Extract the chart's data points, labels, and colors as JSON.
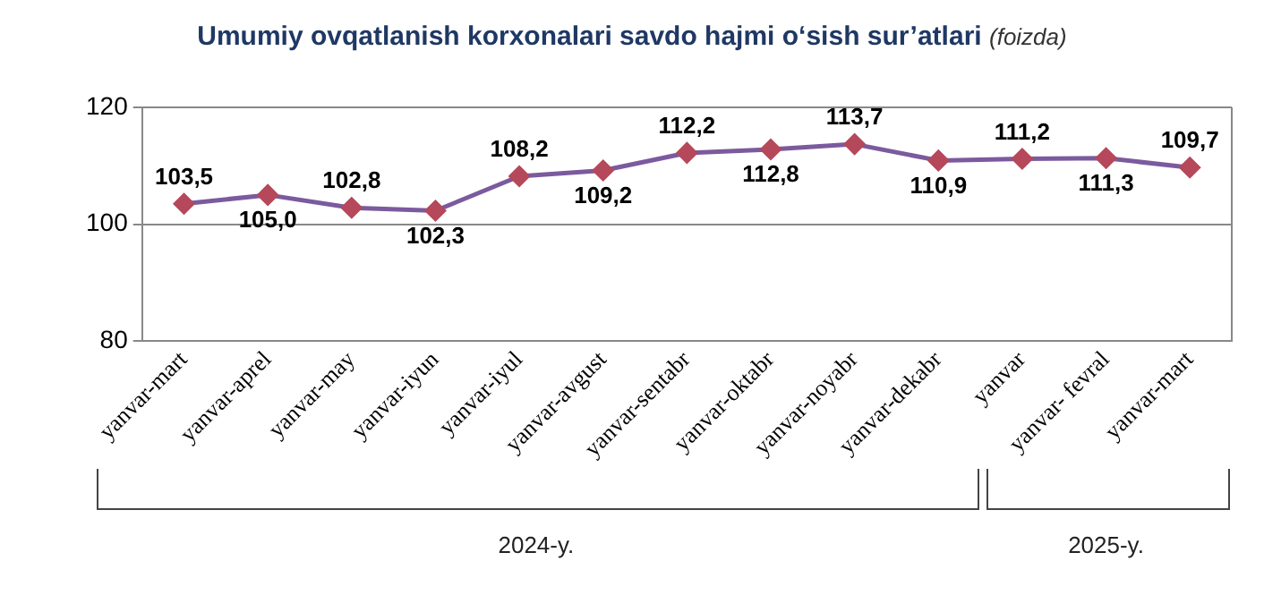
{
  "chart_data": {
    "type": "line",
    "title": "Umumiy ovqatlanish korxonalari savdo hajmi o‘sish sur’atlari",
    "subtitle": "(foizda)",
    "categories": [
      "yanvar-mart",
      "yanvar-aprel",
      "yanvar-may",
      "yanvar-iyun",
      "yanvar-iyul",
      "yanvar-avgust",
      "yanvar-sentabr",
      "yanvar-oktabr",
      "yanvar-noyabr",
      "yanvar-dekabr",
      "yanvar",
      "yanvar- fevral",
      "yanvar-mart"
    ],
    "series": [
      {
        "color": "#7b5a9e",
        "colors": [
          "#b5485a",
          "#b5485a",
          "#b5485a",
          "#b5485a",
          "#b5485a",
          "#b5485a",
          "#b5485a",
          "#b5485a",
          "#b5485a",
          "#b5485a",
          "#b5485a",
          "#b5485a",
          "#b5485a"
        ],
        "values": [
          103.5,
          105.0,
          102.8,
          102.3,
          108.2,
          109.2,
          112.2,
          112.8,
          113.7,
          110.9,
          111.2,
          111.3,
          109.7
        ],
        "value_labels": [
          "103,5",
          "105,0",
          "102,8",
          "102,3",
          "108,2",
          "109,2",
          "112,2",
          "112,8",
          "113,7",
          "110,9",
          "111,2",
          "111,3",
          "109,7"
        ]
      }
    ],
    "ylim": [
      80,
      120
    ],
    "yticks": [
      80,
      100,
      120
    ],
    "grid": "y",
    "legend": false,
    "marker": "diamond",
    "line_style": "solid",
    "annotations": [
      "2024-y.",
      "2025-y."
    ]
  }
}
